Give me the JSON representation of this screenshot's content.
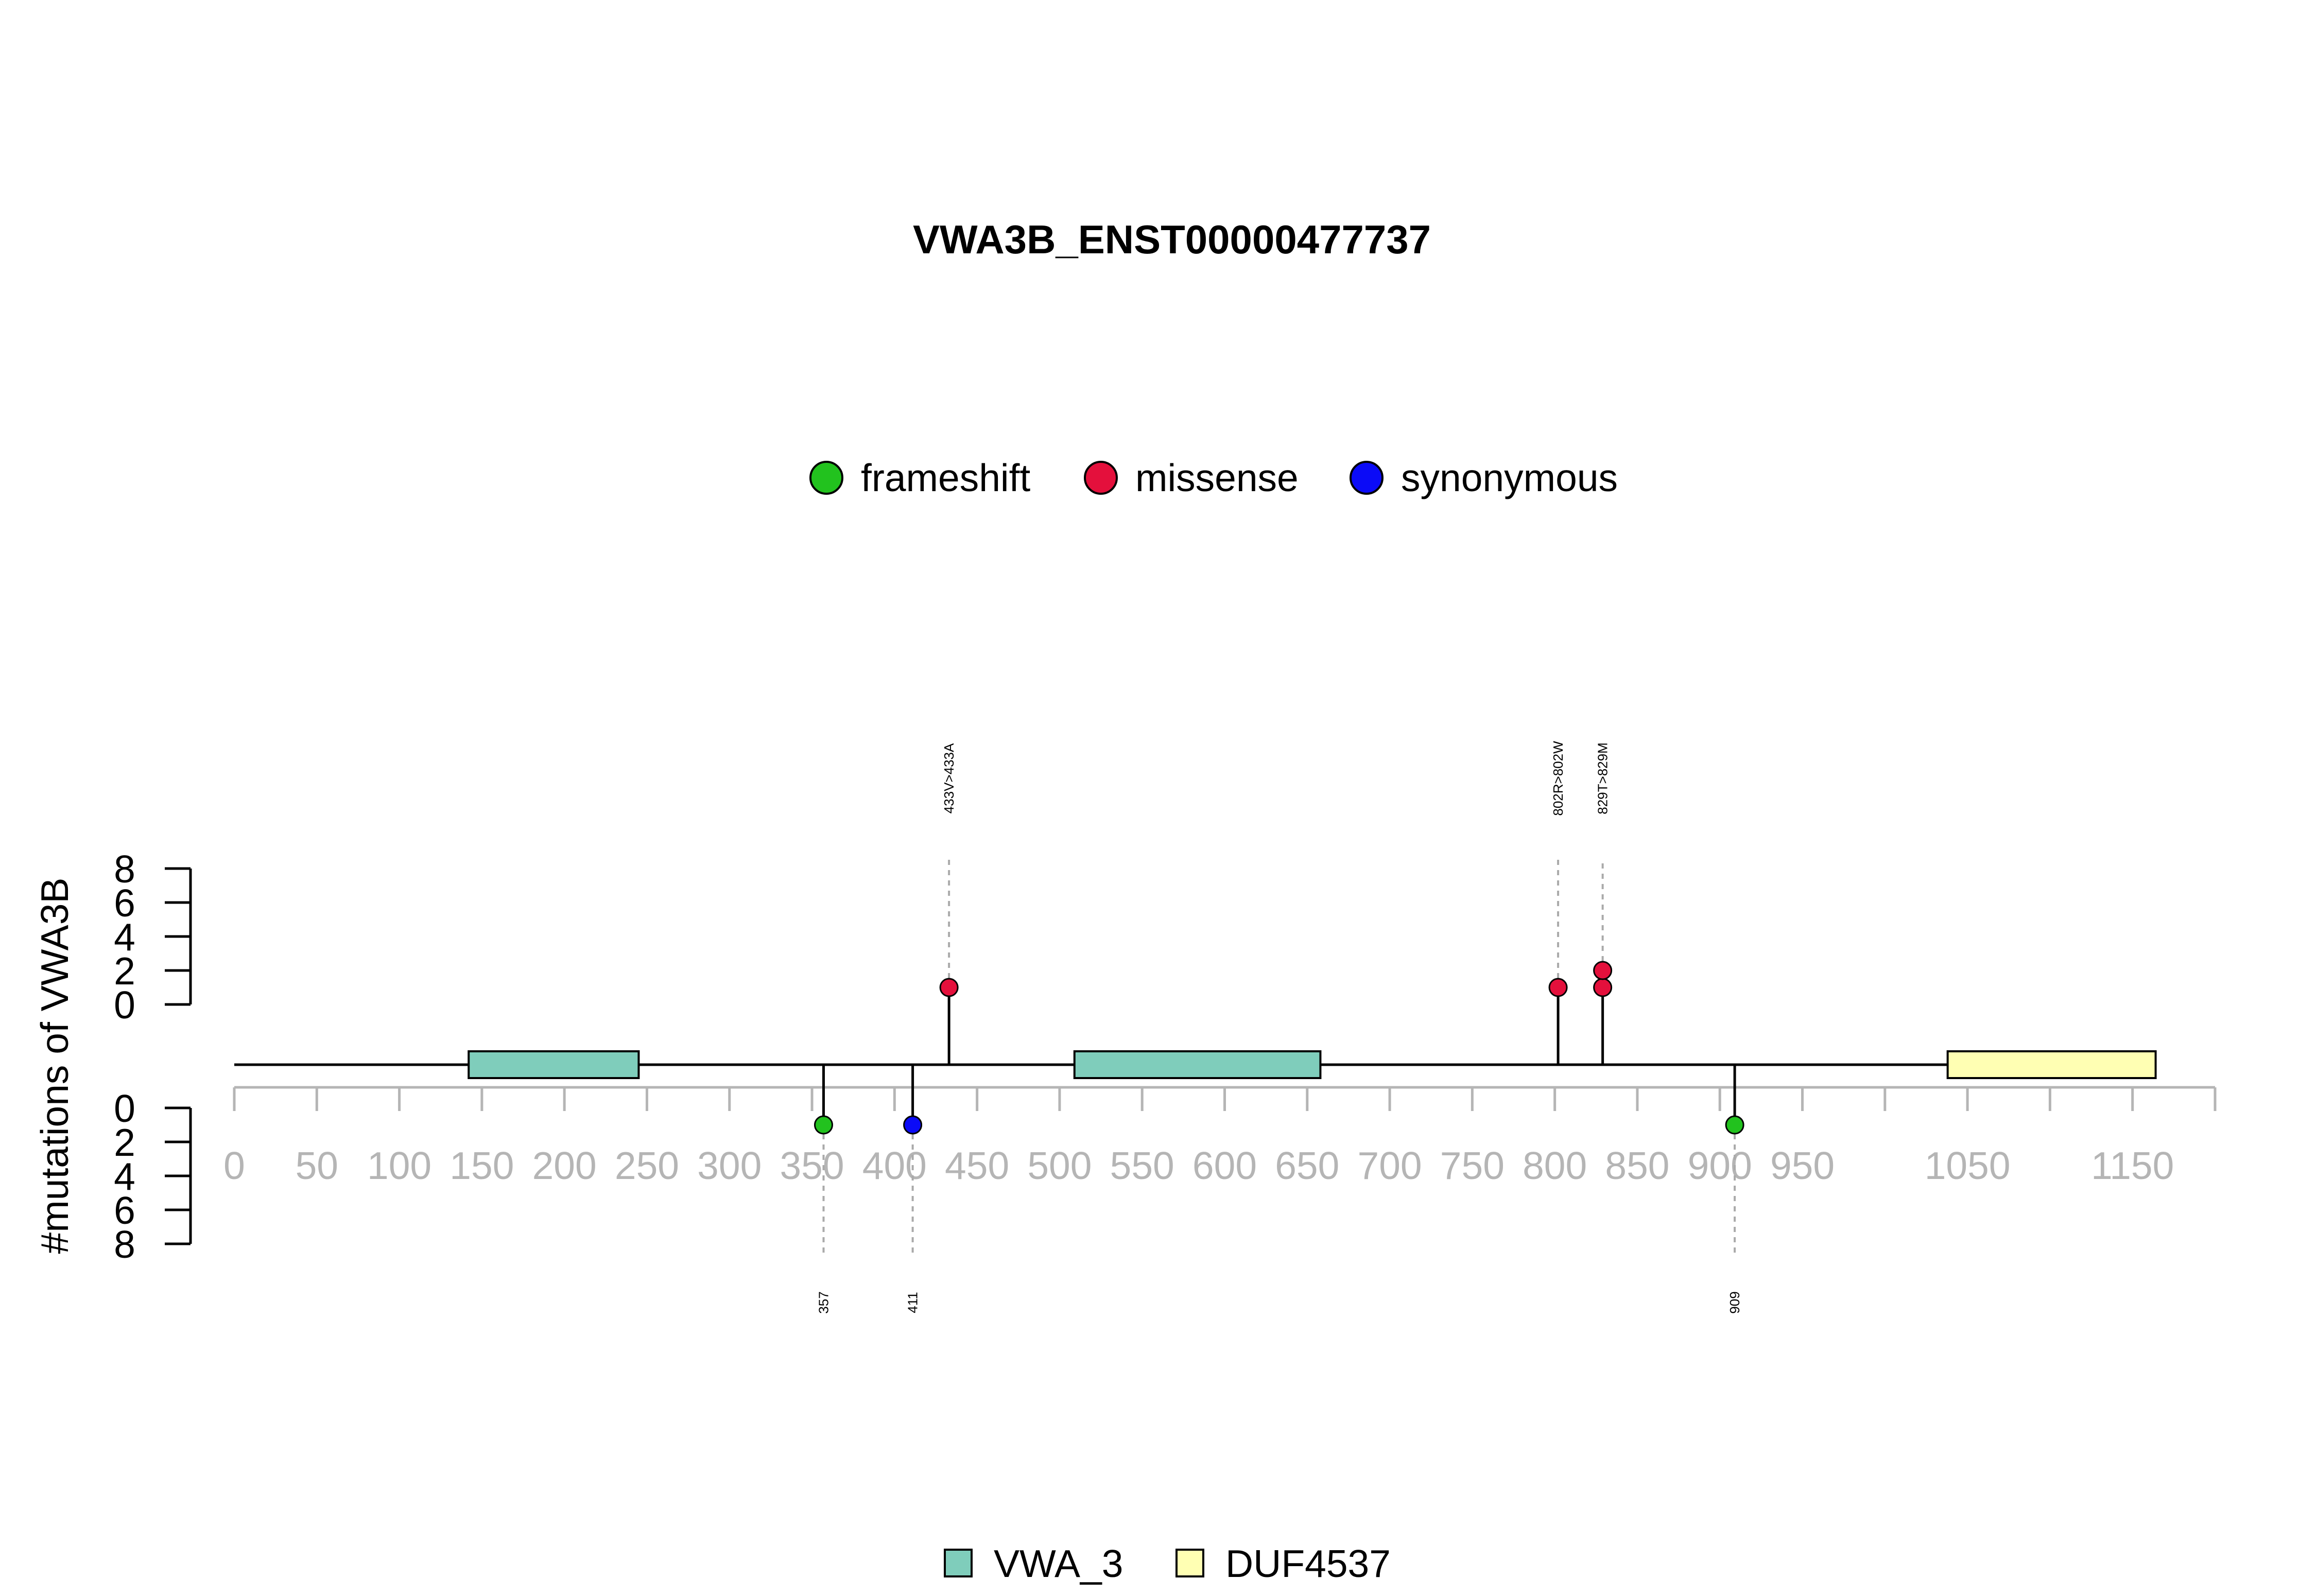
{
  "chart_data": {
    "type": "lollipop",
    "title": "VWA3B_ENST00000477737",
    "ylabel": "#mutations of VWA3B",
    "xlim": [
      0,
      1200
    ],
    "x_ticks": [
      0,
      50,
      100,
      150,
      200,
      250,
      300,
      350,
      400,
      450,
      500,
      550,
      600,
      650,
      700,
      750,
      800,
      850,
      900,
      950,
      1000,
      1050,
      1100,
      1150,
      1200
    ],
    "x_tick_labels": [
      "0",
      "50",
      "100",
      "150",
      "200",
      "250",
      "300",
      "350",
      "400",
      "450",
      "500",
      "550",
      "600",
      "650",
      "700",
      "750",
      "800",
      "850",
      "900",
      "950",
      "",
      "1050",
      "",
      "1150",
      ""
    ],
    "y_ticks_top": [
      "0",
      "2",
      "4",
      "6",
      "8"
    ],
    "y_ticks_bottom": [
      "0",
      "2",
      "4",
      "6",
      "8"
    ],
    "ylim": [
      0,
      8
    ],
    "mutation_types": [
      {
        "name": "frameshift",
        "color": "#22c21e"
      },
      {
        "name": "missense",
        "color": "#e4103c"
      },
      {
        "name": "synonymous",
        "color": "#0b0bf7"
      }
    ],
    "mutations_top": [
      {
        "position": 433,
        "count": 1,
        "type": "missense",
        "label": "433V>433A"
      },
      {
        "position": 802,
        "count": 1,
        "type": "missense",
        "label": "802R>802W"
      },
      {
        "position": 829,
        "count": 2,
        "type": "missense",
        "label": "829T>829M"
      }
    ],
    "mutations_bottom": [
      {
        "position": 357,
        "count": 1,
        "type": "frameshift",
        "label": "357"
      },
      {
        "position": 411,
        "count": 1,
        "type": "synonymous",
        "label": "411"
      },
      {
        "position": 909,
        "count": 1,
        "type": "frameshift",
        "label": "909"
      }
    ],
    "domains": [
      {
        "name": "VWA_3",
        "start": 142,
        "end": 245,
        "color": "#7fcdbb"
      },
      {
        "name": "VWA_3",
        "start": 509,
        "end": 658,
        "color": "#7fcdbb"
      },
      {
        "name": "DUF4537",
        "start": 1038,
        "end": 1164,
        "color": "#ffffb3"
      }
    ],
    "domain_legend": [
      {
        "name": "VWA_3",
        "color": "#7fcdbb"
      },
      {
        "name": "DUF4537",
        "color": "#ffffb3"
      }
    ]
  }
}
